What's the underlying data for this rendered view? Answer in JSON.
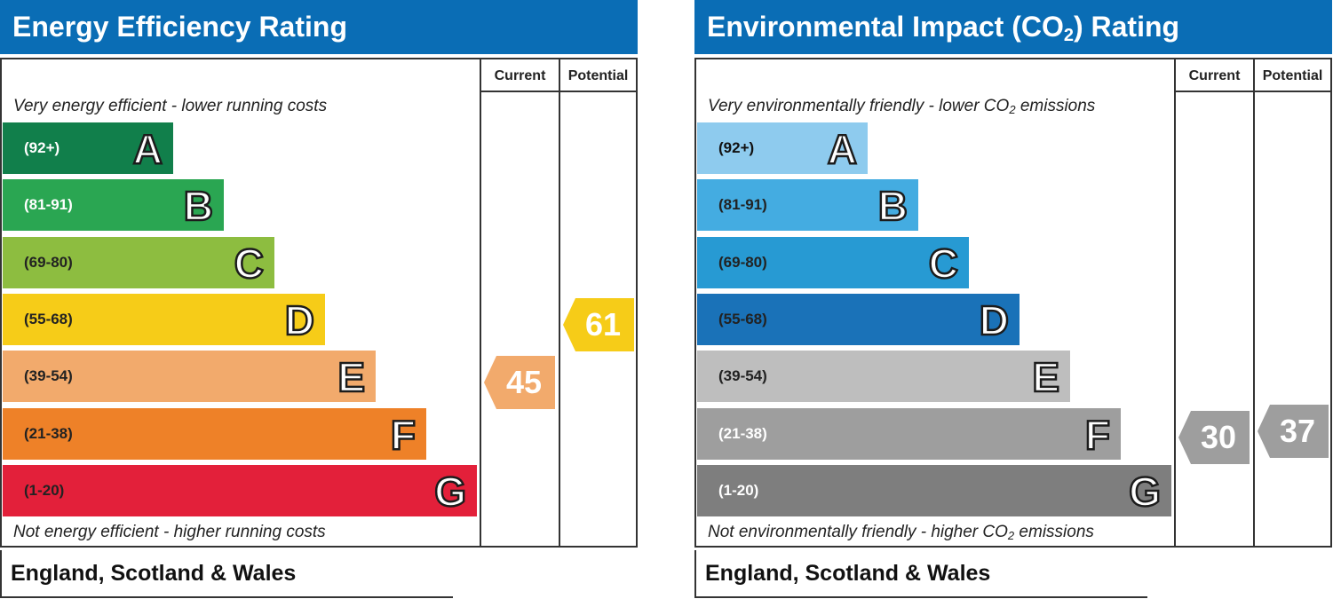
{
  "energy_efficiency": {
    "title": "Energy Efficiency Rating",
    "col_current": "Current",
    "col_potential": "Potential",
    "top_caption": "Very energy efficient - lower running costs",
    "bottom_caption": "Not energy efficient - higher running costs",
    "footer": "England, Scotland & Wales",
    "bands": [
      {
        "range": "(92+)",
        "letter": "A",
        "color": "#117f4b",
        "text_color": "#ffffff"
      },
      {
        "range": "(81-91)",
        "letter": "B",
        "color": "#2aa652",
        "text_color": "#ffffff"
      },
      {
        "range": "(69-80)",
        "letter": "C",
        "color": "#8dbd40",
        "text_color": "#222222"
      },
      {
        "range": "(55-68)",
        "letter": "D",
        "color": "#f6cc18",
        "text_color": "#222222"
      },
      {
        "range": "(39-54)",
        "letter": "E",
        "color": "#f2aa6c",
        "text_color": "#222222"
      },
      {
        "range": "(21-38)",
        "letter": "F",
        "color": "#ee8128",
        "text_color": "#222222"
      },
      {
        "range": "(1-20)",
        "letter": "G",
        "color": "#e3203a",
        "text_color": "#222222"
      }
    ],
    "current": {
      "value": "45",
      "band": "E",
      "color": "#f2aa6c"
    },
    "potential": {
      "value": "61",
      "band": "D",
      "color": "#f6cc18"
    }
  },
  "environmental_impact": {
    "title_main": "Environmental Impact (CO",
    "title_sub": "2",
    "title_end": ") Rating",
    "col_current": "Current",
    "col_potential": "Potential",
    "top_caption_main": "Very environmentally friendly - lower CO",
    "top_caption_sub": "2",
    "top_caption_end": " emissions",
    "bottom_caption_main": "Not environmentally friendly - higher CO",
    "bottom_caption_sub": "2",
    "bottom_caption_end": " emissions",
    "footer": "England, Scotland & Wales",
    "bands": [
      {
        "range": "(92+)",
        "letter": "A",
        "color": "#8ecbee",
        "text_color": "#111111"
      },
      {
        "range": "(81-91)",
        "letter": "B",
        "color": "#44ace1",
        "text_color": "#222222"
      },
      {
        "range": "(69-80)",
        "letter": "C",
        "color": "#279ad3",
        "text_color": "#222222"
      },
      {
        "range": "(55-68)",
        "letter": "D",
        "color": "#1a72b8",
        "text_color": "#222222"
      },
      {
        "range": "(39-54)",
        "letter": "E",
        "color": "#bebebe",
        "text_color": "#222222"
      },
      {
        "range": "(21-38)",
        "letter": "F",
        "color": "#9e9e9e",
        "text_color": "#ffffff"
      },
      {
        "range": "(1-20)",
        "letter": "G",
        "color": "#7e7e7e",
        "text_color": "#ffffff"
      }
    ],
    "current": {
      "value": "30",
      "band": "F",
      "color": "#9e9e9e"
    },
    "potential": {
      "value": "37",
      "band": "F",
      "color": "#9e9e9e"
    }
  },
  "chart_data": [
    {
      "type": "bar",
      "title": "Energy Efficiency Rating",
      "categories": [
        "A",
        "B",
        "C",
        "D",
        "E",
        "F",
        "G"
      ],
      "ranges": [
        "(92+)",
        "(81-91)",
        "(69-80)",
        "(55-68)",
        "(39-54)",
        "(21-38)",
        "(1-20)"
      ],
      "current": 45,
      "potential": 61
    },
    {
      "type": "bar",
      "title": "Environmental Impact (CO2) Rating",
      "categories": [
        "A",
        "B",
        "C",
        "D",
        "E",
        "F",
        "G"
      ],
      "ranges": [
        "(92+)",
        "(81-91)",
        "(69-80)",
        "(55-68)",
        "(39-54)",
        "(21-38)",
        "(1-20)"
      ],
      "current": 30,
      "potential": 37
    }
  ]
}
